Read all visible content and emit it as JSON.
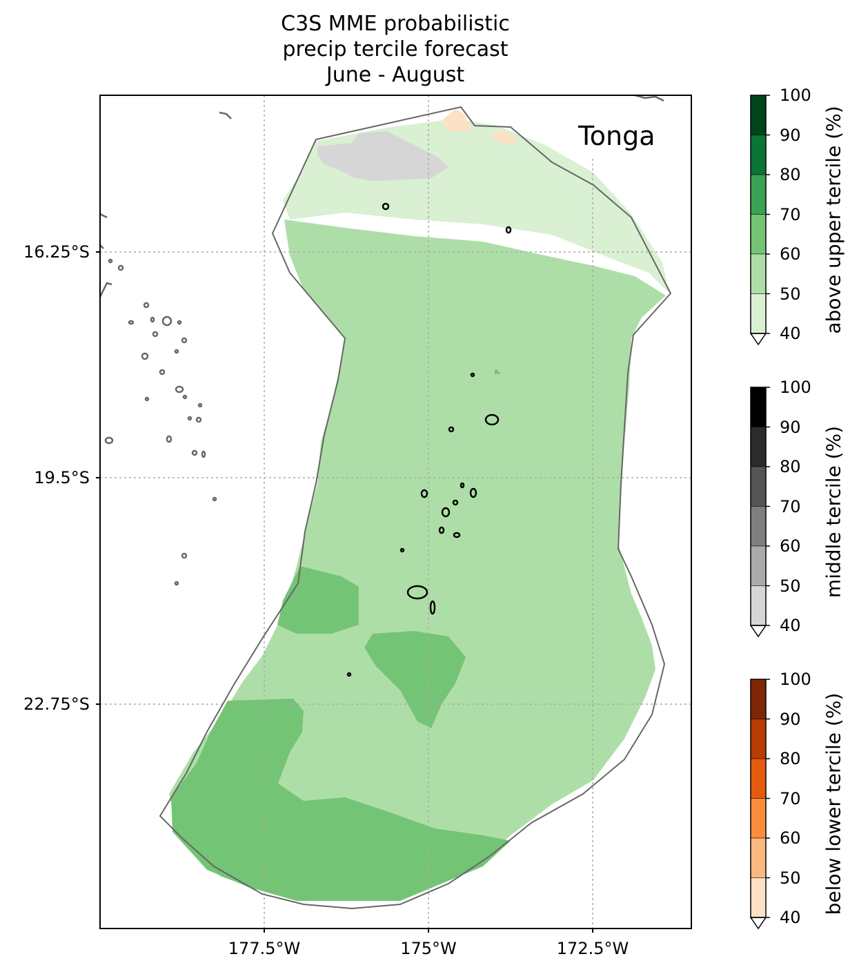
{
  "title_lines": [
    "C3S MME probabilistic",
    "precip tercile forecast",
    "June - August"
  ],
  "region_label": "Tonga",
  "y_ticks": [
    "16.25°S",
    "19.5°S",
    "22.75°S"
  ],
  "x_ticks": [
    "177.5°W",
    "175°W",
    "172.5°W"
  ],
  "colorbars": [
    {
      "label": "above upper tercile (%)",
      "ticks": [
        "100",
        "90",
        "80",
        "70",
        "60",
        "50",
        "40"
      ],
      "colors": [
        "#00441b",
        "#0a7535",
        "#3ba155",
        "#74c476",
        "#aedea7",
        "#d9f0d3"
      ]
    },
    {
      "label": "middle tercile (%)",
      "ticks": [
        "100",
        "90",
        "80",
        "70",
        "60",
        "50",
        "40"
      ],
      "colors": [
        "#000000",
        "#2b2b2b",
        "#555555",
        "#7f7f7f",
        "#aaaaaa",
        "#d6d6d6"
      ]
    },
    {
      "label": "below lower tercile (%)",
      "ticks": [
        "100",
        "90",
        "80",
        "70",
        "60",
        "50",
        "40"
      ],
      "colors": [
        "#7f2704",
        "#b83c02",
        "#e55b0c",
        "#fd8d3c",
        "#fdb97d",
        "#fee1c4"
      ]
    }
  ],
  "colors": {
    "forecast_40_50": "#d9f0d3",
    "forecast_50_60": "#aedea7",
    "forecast_60_70": "#74c476",
    "normal_40_50": "#d6d6d6",
    "below_40_50": "#fee1c4"
  }
}
